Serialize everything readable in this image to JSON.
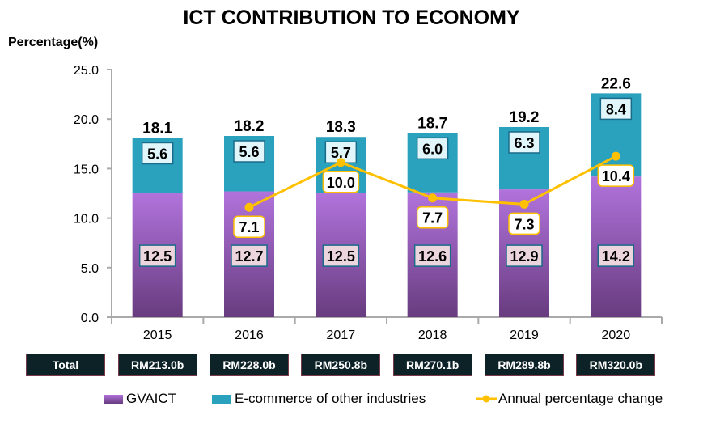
{
  "chart_data": {
    "type": "bar",
    "stacked": true,
    "title": "ICT CONTRIBUTION TO ECONOMY",
    "ylabel": "Percentage(%)",
    "xlabel": "",
    "ylim": [
      0,
      25
    ],
    "yticks": [
      "0.0",
      "5.0",
      "10.0",
      "15.0",
      "20.0",
      "25.0"
    ],
    "grid": false,
    "legend_position": "bottom",
    "categories": [
      "2015",
      "2016",
      "2017",
      "2018",
      "2019",
      "2020"
    ],
    "series": [
      {
        "name": "GVAICT",
        "type": "bar",
        "color": "#a86dd4",
        "values": [
          12.5,
          12.7,
          12.5,
          12.6,
          12.9,
          14.2
        ]
      },
      {
        "name": "E-commerce of other industries",
        "type": "bar",
        "color": "#2aa1bd",
        "values": [
          5.6,
          5.6,
          5.7,
          6.0,
          6.3,
          8.4
        ]
      },
      {
        "name": "Annual percentage change",
        "type": "line",
        "color": "#ffc000",
        "secondary_axis": true,
        "values": [
          null,
          7.1,
          10.0,
          7.7,
          7.3,
          10.4
        ]
      }
    ],
    "totals": [
      "18.1",
      "18.2",
      "18.3",
      "18.7",
      "19.2",
      "22.6"
    ],
    "total_row": {
      "label": "Total",
      "values": [
        "RM213.0b",
        "RM228.0b",
        "RM250.8b",
        "RM270.1b",
        "RM289.8b",
        "RM320.0b"
      ]
    }
  }
}
